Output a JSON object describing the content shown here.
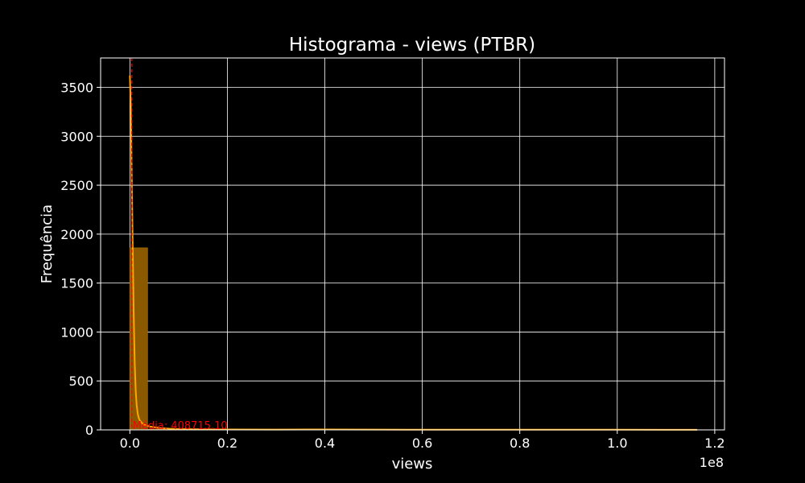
{
  "chart_data": {
    "type": "bar",
    "title": "Histograma - views (PTBR)",
    "xlabel": "views",
    "ylabel": "Frequência",
    "x_offset_label": "1e8",
    "xlim": [
      -0.06,
      1.22
    ],
    "ylim": [
      0,
      3800
    ],
    "x_ticks": [
      0.0,
      0.2,
      0.4,
      0.6,
      0.8,
      1.0,
      1.2
    ],
    "x_tick_labels": [
      "0.0",
      "0.2",
      "0.4",
      "0.6",
      "0.8",
      "1.0",
      "1.2"
    ],
    "y_ticks": [
      0,
      500,
      1000,
      1500,
      2000,
      2500,
      3000,
      3500
    ],
    "y_tick_labels": [
      "0",
      "500",
      "1000",
      "1500",
      "2000",
      "2500",
      "3000",
      "3500"
    ],
    "grid": true,
    "bins": [
      {
        "x0": 0.0,
        "x1": 0.0364,
        "count": 1860
      },
      {
        "x0": 0.0364,
        "x1": 0.0728,
        "count": 8
      },
      {
        "x0": 0.0728,
        "x1": 0.1092,
        "count": 2
      },
      {
        "x0": 0.3276,
        "x1": 0.364,
        "count": 1
      },
      {
        "x0": 1.128,
        "x1": 1.164,
        "count": 1
      }
    ],
    "kde": {
      "x": [
        0.0,
        0.002,
        0.004,
        0.006,
        0.008,
        0.01,
        0.012,
        0.014,
        0.016,
        0.018,
        0.02,
        0.025,
        0.03,
        0.04,
        0.06,
        0.08,
        0.1,
        0.15,
        0.2,
        0.3,
        0.4,
        0.5,
        0.6,
        0.7,
        0.8,
        0.9,
        1.0,
        1.1,
        1.164
      ],
      "y": [
        3620,
        3300,
        2550,
        1800,
        1150,
        680,
        400,
        250,
        170,
        125,
        100,
        70,
        50,
        35,
        20,
        12,
        8,
        5,
        4,
        3,
        4,
        3,
        2,
        2,
        2,
        2,
        2,
        1,
        1
      ]
    },
    "mean_line": {
      "value": 0.00408715,
      "label": "Média: 408715.10",
      "color": "#ff0000"
    },
    "colors": {
      "bar_fill": "#8B5A00",
      "bar_edge": "#b57500",
      "kde": "#ffa500",
      "grid": "#ffffff",
      "background": "#000000",
      "mean": "#ff0000"
    }
  }
}
